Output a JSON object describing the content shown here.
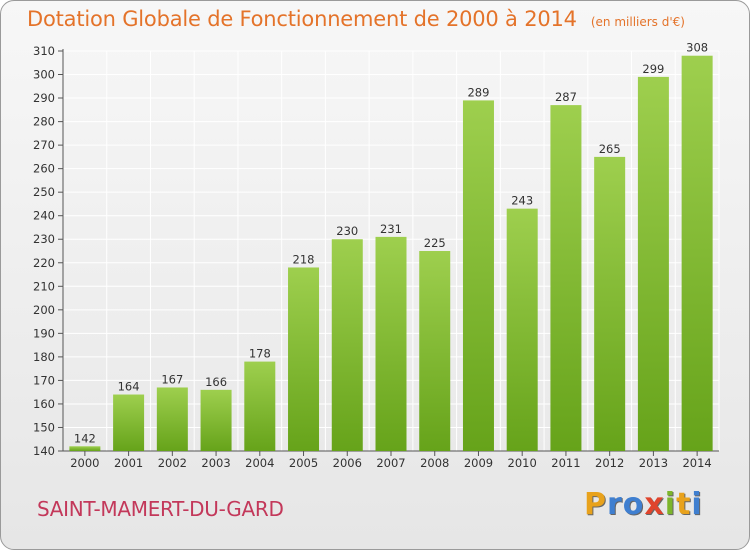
{
  "header": {
    "title": "Dotation Globale de Fonctionnement de 2000 à 2014",
    "unit": "(en milliers d'€)"
  },
  "footer": {
    "commune": "SAINT-MAMERT-DU-GARD",
    "logo_text": "Proxiti",
    "logo_letters": [
      "P",
      "r",
      "o",
      "x",
      "i",
      "t",
      "i"
    ],
    "logo_colors": [
      "#e8a21c",
      "#3f7fd0",
      "#3f7fd0",
      "#e0442c",
      "#7cb52b",
      "#e8a21c",
      "#3f7fd0"
    ]
  },
  "colors": {
    "title": "#e4732a",
    "commune": "#c3385a",
    "bar_light": "#9ecf4e",
    "bar_dark": "#66a31a",
    "grid": "#ffffff"
  },
  "chart_data": {
    "type": "bar",
    "title": "Dotation Globale de Fonctionnement de 2000 à 2014",
    "subtitle": "(en milliers d'€)",
    "xlabel": "",
    "ylabel": "",
    "categories": [
      "2000",
      "2001",
      "2002",
      "2003",
      "2004",
      "2005",
      "2006",
      "2007",
      "2008",
      "2009",
      "2010",
      "2011",
      "2012",
      "2013",
      "2014"
    ],
    "values": [
      142,
      164,
      167,
      166,
      178,
      218,
      230,
      231,
      225,
      289,
      243,
      287,
      265,
      299,
      308
    ],
    "ylim": [
      140,
      310
    ],
    "yticks": [
      140,
      150,
      160,
      170,
      180,
      190,
      200,
      210,
      220,
      230,
      240,
      250,
      260,
      270,
      280,
      290,
      300,
      310
    ],
    "grid": true,
    "data_labels": true
  }
}
